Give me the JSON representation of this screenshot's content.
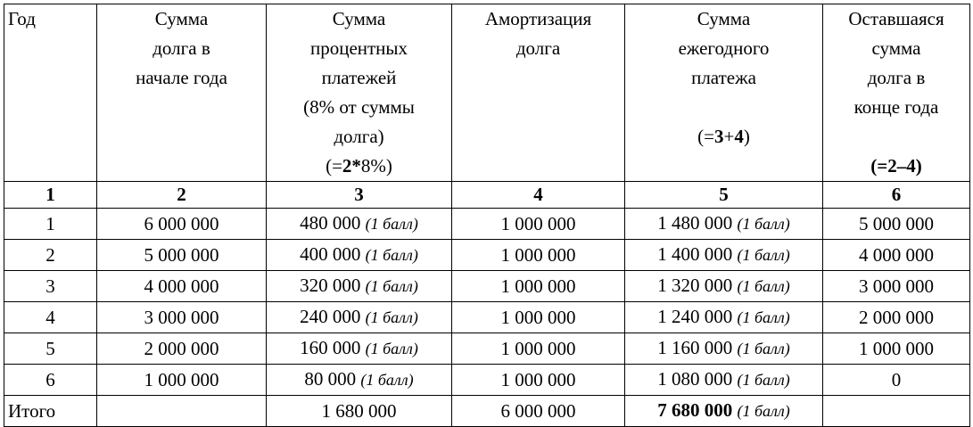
{
  "header": [
    {
      "lines": [
        "Год"
      ]
    },
    {
      "lines": [
        "Сумма",
        "долга в",
        "начале года"
      ]
    },
    {
      "lines": [
        "Сумма",
        "процентных",
        "платежей",
        "(8% от суммы",
        "долга)"
      ],
      "formula": [
        {
          "text": "(="
        },
        {
          "text": "2*",
          "bold": true
        },
        {
          "text": "8%)"
        }
      ]
    },
    {
      "lines": [
        "Амортизация",
        "долга"
      ]
    },
    {
      "lines": [
        "Сумма",
        "ежегодного",
        "платежа"
      ],
      "formula": [
        {
          "text": "(="
        },
        {
          "text": "3",
          "bold": true
        },
        {
          "text": "+"
        },
        {
          "text": "4",
          "bold": true
        },
        {
          "text": ")"
        }
      ]
    },
    {
      "lines": [
        "Оставшаяся",
        "сумма",
        "долга в",
        "конце года"
      ],
      "formula": [
        {
          "text": "(=2–4)",
          "bold": true
        }
      ]
    }
  ],
  "column_numbers": [
    "1",
    "2",
    "3",
    "4",
    "5",
    "6"
  ],
  "rows": [
    [
      "1",
      "6 000 000",
      {
        "value": "480 000",
        "note": "(1 балл)"
      },
      "1 000 000",
      {
        "value": "1 480 000",
        "note": "(1 балл)"
      },
      "5 000 000"
    ],
    [
      "2",
      "5 000 000",
      {
        "value": "400 000",
        "note": "(1 балл)"
      },
      "1 000 000",
      {
        "value": "1 400 000",
        "note": "(1 балл)"
      },
      "4 000 000"
    ],
    [
      "3",
      "4 000 000",
      {
        "value": "320 000",
        "note": "(1 балл)"
      },
      "1 000 000",
      {
        "value": "1 320 000",
        "note": "(1 балл)"
      },
      "3 000 000"
    ],
    [
      "4",
      "3 000 000",
      {
        "value": "240 000",
        "note": "(1 балл)"
      },
      "1 000 000",
      {
        "value": "1 240 000",
        "note": "(1 балл)"
      },
      "2 000 000"
    ],
    [
      "5",
      "2 000 000",
      {
        "value": "160 000",
        "note": "(1 балл)"
      },
      "1 000 000",
      {
        "value": "1 160 000",
        "note": "(1 балл)"
      },
      "1 000 000"
    ],
    [
      "6",
      "1 000 000",
      {
        "value": "80 000",
        "note": "(1 балл)"
      },
      "1 000 000",
      {
        "value": "1 080 000",
        "note": "(1 балл)"
      },
      "0"
    ]
  ],
  "total": {
    "label": "Итого",
    "interest": "1 680 000",
    "amortization": "6 000 000",
    "payment": {
      "value": "7 680 000",
      "note": "(1 балл)"
    }
  }
}
